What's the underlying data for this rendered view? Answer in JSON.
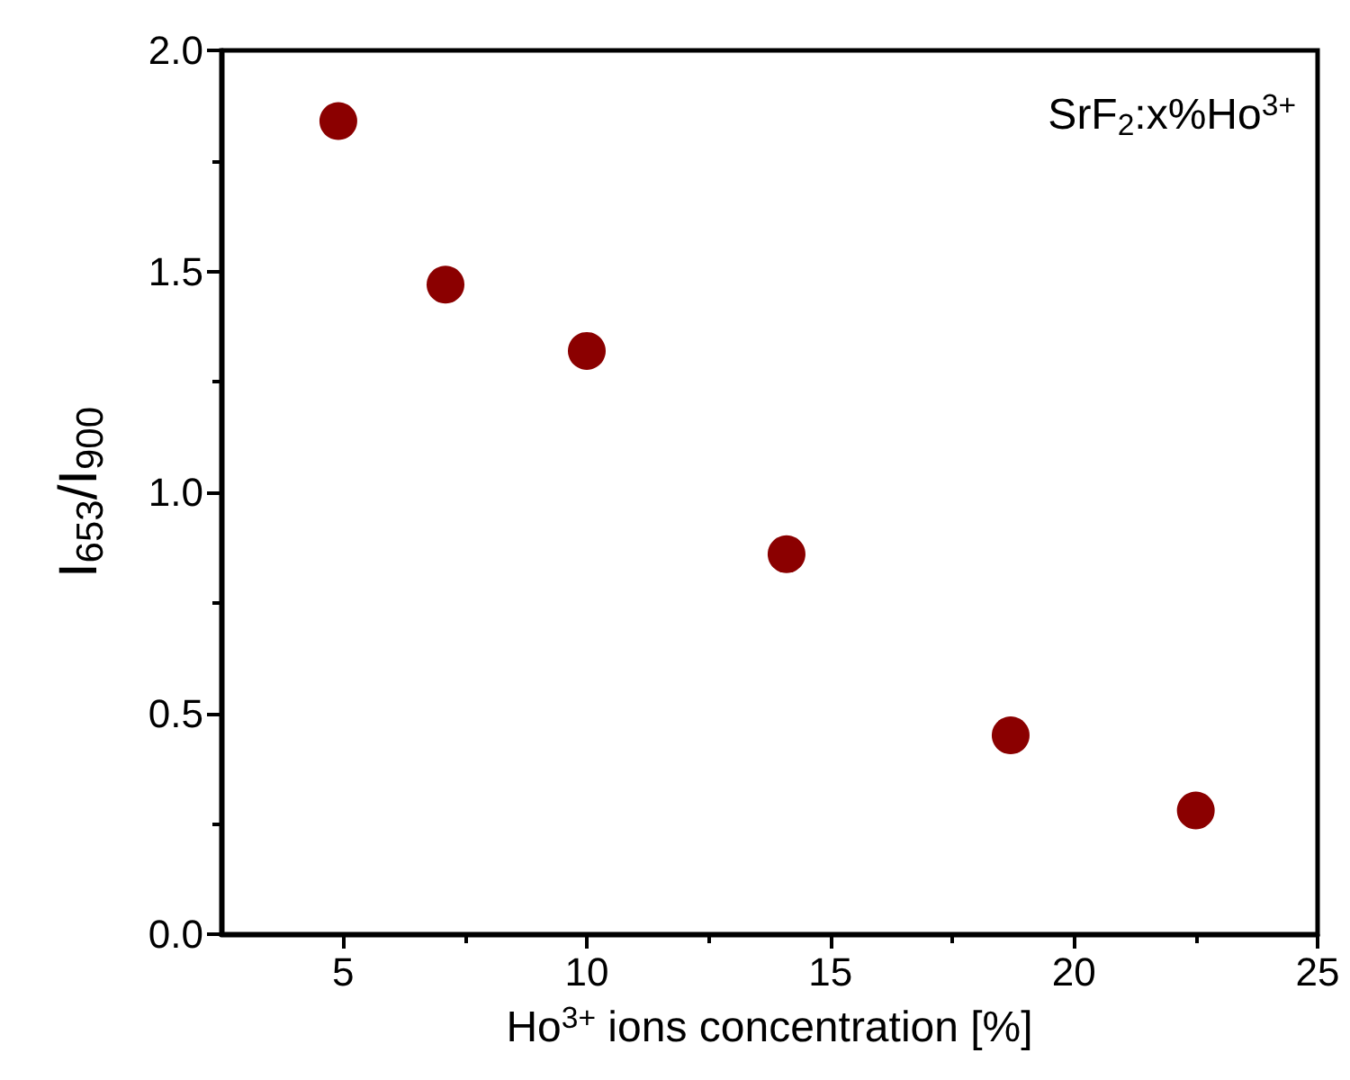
{
  "chart_data": {
    "type": "scatter",
    "xlabel": "Ho$^{3+}$ ions concentration [%]",
    "ylabel": "I$_{653}$/I$_{900}$",
    "annotations": [
      "SrF$_{2}$:x%Ho$^{3+}$"
    ],
    "x": [
      4.9,
      7.1,
      10.0,
      14.1,
      18.7,
      22.5
    ],
    "series": [
      {
        "color": "#8b0000",
        "values": [
          1.84,
          1.47,
          1.32,
          0.86,
          0.45,
          0.28
        ]
      }
    ],
    "marker": "circle",
    "xlim": [
      2.5,
      25
    ],
    "xticks": [
      5,
      10,
      15,
      20,
      25
    ],
    "ylim": [
      0,
      2
    ],
    "yticks": [
      {
        "value": 0,
        "label": "0.0"
      },
      {
        "value": 0.5,
        "label": "0.5"
      },
      {
        "value": 1,
        "label": "1.0"
      },
      {
        "value": 1.5,
        "label": "1.5"
      },
      {
        "value": 2,
        "label": "2.0"
      }
    ]
  }
}
